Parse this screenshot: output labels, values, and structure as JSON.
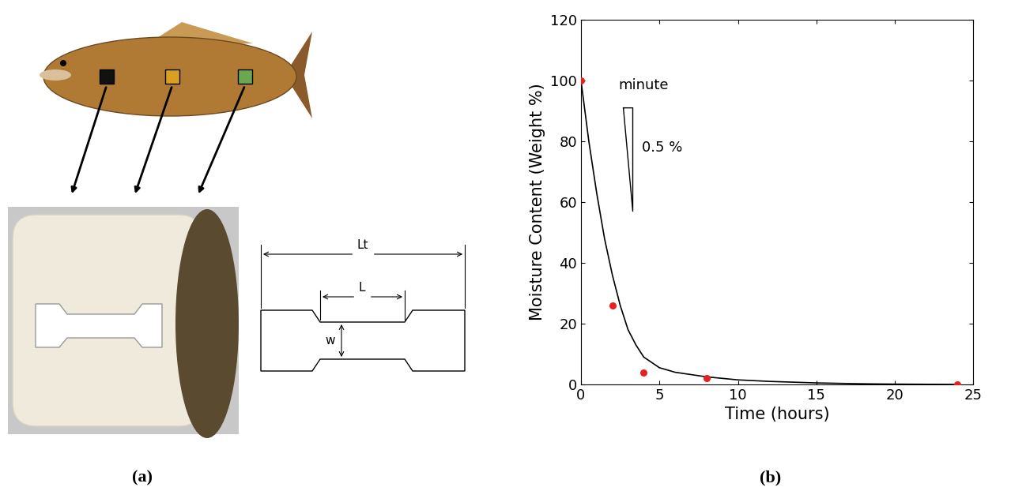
{
  "panel_labels": [
    "(a)",
    "(b)"
  ],
  "specimen_diagram": {
    "total_length": "Lt",
    "gauge_length": "L",
    "width": "w"
  },
  "chart_data": {
    "type": "scatter",
    "x_label": "Time (hours)",
    "y_label": "Moisture Content (Weight %)",
    "xlim": [
      0,
      25
    ],
    "xticks": [
      0,
      5,
      10,
      15,
      20,
      25
    ],
    "ylim": [
      0,
      120
    ],
    "yticks": [
      0,
      20,
      40,
      60,
      80,
      100,
      120
    ],
    "grid": false,
    "annotations": [
      "minute",
      "0.5 %"
    ],
    "series": [
      {
        "type": "scatter",
        "color": "#e8201e",
        "marker": "o",
        "x": [
          0,
          2,
          4,
          8,
          24
        ],
        "values": [
          100,
          26,
          4,
          2,
          0
        ]
      },
      {
        "type": "line",
        "color": "#000000",
        "line_style": "solid",
        "x": [
          0,
          0.5,
          1,
          1.5,
          2,
          2.5,
          3,
          3.5,
          4,
          5,
          6,
          8,
          10,
          12,
          15,
          18,
          20,
          24
        ],
        "values": [
          100,
          80,
          63,
          48,
          36,
          26,
          18,
          13,
          9,
          5.5,
          4,
          2.5,
          1.5,
          1,
          0.5,
          0.2,
          0.1,
          0
        ]
      }
    ]
  }
}
